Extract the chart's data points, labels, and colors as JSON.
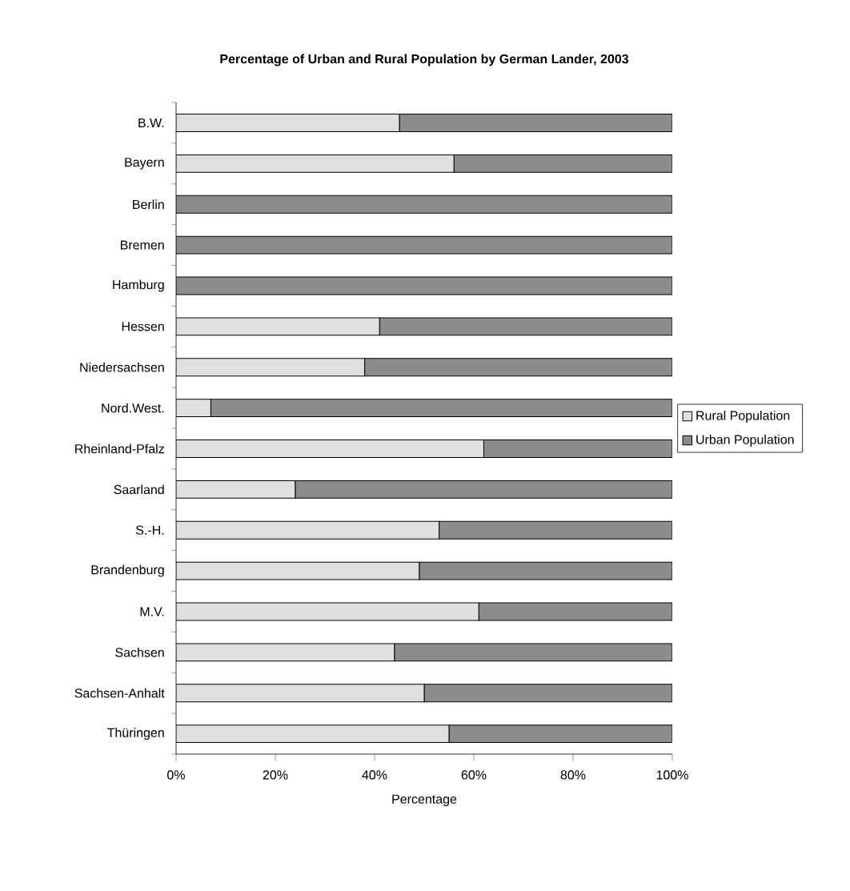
{
  "chart_data": {
    "type": "bar",
    "orientation": "horizontal",
    "stacked": true,
    "title": "Percentage of Urban and Rural Population by German Lander, 2003",
    "xlabel": "Percentage",
    "categories": [
      "B.W.",
      "Bayern",
      "Berlin",
      "Bremen",
      "Hamburg",
      "Hessen",
      "Niedersachsen",
      "Nord.West.",
      "Rheinland-Pfalz",
      "Saarland",
      "S.-H.",
      "Brandenburg",
      "M.V.",
      "Sachsen",
      "Sachsen-Anhalt",
      "Thüringen"
    ],
    "series": [
      {
        "name": "Rural Population",
        "color": "#e0e0e0",
        "values": [
          45,
          56,
          0,
          0,
          0,
          41,
          38,
          7,
          62,
          24,
          53,
          49,
          61,
          44,
          50,
          55
        ]
      },
      {
        "name": "Urban Population",
        "color": "#8c8c8c",
        "values": [
          55,
          44,
          100,
          100,
          100,
          59,
          62,
          93,
          38,
          76,
          47,
          51,
          39,
          56,
          50,
          45
        ]
      }
    ],
    "xlim": [
      0,
      100
    ],
    "xticks": [
      {
        "value": 0,
        "label": "0%"
      },
      {
        "value": 20,
        "label": "20%"
      },
      {
        "value": 40,
        "label": "40%"
      },
      {
        "value": 60,
        "label": "60%"
      },
      {
        "value": 80,
        "label": "80%"
      },
      {
        "value": 100,
        "label": "100%"
      }
    ],
    "grid": false,
    "legend": "right"
  }
}
